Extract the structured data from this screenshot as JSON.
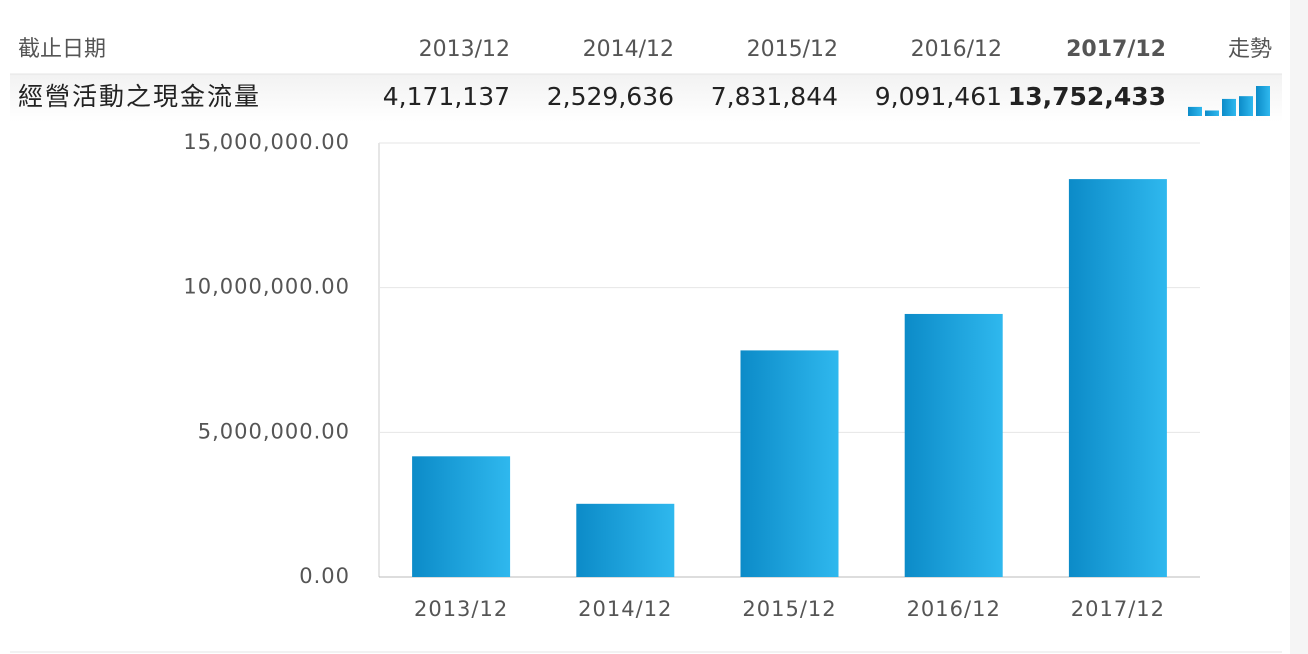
{
  "table": {
    "header": [
      "截止日期",
      "2013/12",
      "2014/12",
      "2015/12",
      "2016/12",
      "2017/12",
      "走勢"
    ],
    "row": {
      "label": "經營活動之現金流量",
      "cells": [
        "4,171,137",
        "2,529,636",
        "7,831,844",
        "9,091,461",
        "13,752,433"
      ]
    }
  },
  "chart_data": {
    "type": "bar",
    "categories": [
      "2013/12",
      "2014/12",
      "2015/12",
      "2016/12",
      "2017/12"
    ],
    "values": [
      4171137,
      2529636,
      7831844,
      9091461,
      13752433
    ],
    "ylim": [
      0,
      15000000
    ],
    "yticks": [
      {
        "value": 0,
        "label": "0.00"
      },
      {
        "value": 5000000,
        "label": "5,000,000.00"
      },
      {
        "value": 10000000,
        "label": "10,000,000.00"
      },
      {
        "value": 15000000,
        "label": "15,000,000.00"
      }
    ],
    "grid": true
  }
}
